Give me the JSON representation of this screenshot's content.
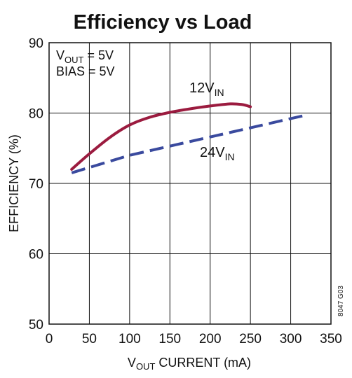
{
  "chart_data": {
    "type": "line",
    "title": "Efficiency vs Load",
    "xlabel": {
      "main": "V",
      "sub": "OUT",
      "rest": " CURRENT (mA)"
    },
    "ylabel": "EFFICIENCY (%)",
    "xlim": [
      0,
      350
    ],
    "ylim": [
      50,
      90
    ],
    "xticks": [
      0,
      50,
      100,
      150,
      200,
      250,
      300,
      350
    ],
    "yticks": [
      50,
      60,
      70,
      80,
      90
    ],
    "grid": true,
    "annotations": {
      "vout": {
        "main": "V",
        "sub": "OUT",
        "rest": " = 5V"
      },
      "bias": "BIAS = 5V",
      "figure_code": "8047 G03"
    },
    "series": [
      {
        "label_main": "12V",
        "label_sub": "IN",
        "color": "#9b1b3f",
        "style": "solid",
        "x": [
          28,
          50,
          75,
          100,
          125,
          150,
          175,
          200,
          225,
          240,
          250
        ],
        "y": [
          72.0,
          74.2,
          76.5,
          78.3,
          79.4,
          80.1,
          80.6,
          81.0,
          81.3,
          81.2,
          80.9
        ]
      },
      {
        "label_main": "24V",
        "label_sub": "IN",
        "color": "#3a4a9e",
        "style": "dashed",
        "x": [
          28,
          100,
          200,
          315
        ],
        "y": [
          71.5,
          74.0,
          76.6,
          79.6
        ]
      }
    ]
  }
}
